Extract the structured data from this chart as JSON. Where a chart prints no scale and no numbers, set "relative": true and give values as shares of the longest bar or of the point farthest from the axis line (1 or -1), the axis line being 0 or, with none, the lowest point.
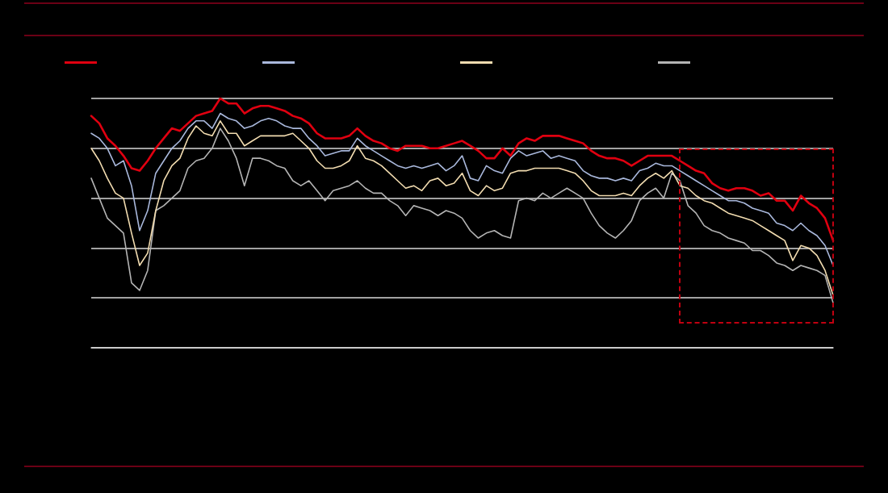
{
  "chart_data": {
    "type": "line",
    "relative": true,
    "grid": "y",
    "marker": "none",
    "line_style": "solid",
    "categories": [
      null,
      null,
      null,
      null,
      null,
      null,
      null,
      null,
      null,
      null,
      null,
      null,
      null,
      null,
      null,
      null,
      null,
      null,
      null,
      null,
      null,
      null,
      null,
      null,
      null,
      null,
      null,
      null,
      null,
      null,
      null,
      null,
      null,
      null,
      null,
      null,
      null,
      null,
      null,
      null,
      null,
      null,
      null,
      null,
      null,
      null,
      null,
      null,
      null,
      null,
      null,
      null,
      null,
      null,
      null,
      null,
      null,
      null,
      null,
      null,
      null,
      null,
      null,
      null,
      null,
      null,
      null,
      null,
      null,
      null,
      null,
      null,
      null,
      null,
      null,
      null,
      null,
      null,
      null,
      null,
      null,
      null,
      null,
      null,
      null,
      null,
      null,
      null,
      null,
      null,
      null,
      null,
      null
    ],
    "series": [
      {
        "color": "#e00010",
        "values": [
          0.93,
          0.9,
          0.84,
          0.81,
          0.77,
          0.72,
          0.71,
          0.75,
          0.8,
          0.84,
          0.88,
          0.87,
          0.9,
          0.93,
          0.94,
          0.95,
          1.0,
          0.98,
          0.98,
          0.94,
          0.96,
          0.97,
          0.97,
          0.96,
          0.95,
          0.93,
          0.92,
          0.9,
          0.86,
          0.84,
          0.84,
          0.84,
          0.85,
          0.88,
          0.85,
          0.83,
          0.82,
          0.8,
          0.79,
          0.81,
          0.81,
          0.81,
          0.8,
          0.8,
          0.81,
          0.82,
          0.83,
          0.81,
          0.79,
          0.76,
          0.76,
          0.8,
          0.77,
          0.82,
          0.84,
          0.83,
          0.85,
          0.85,
          0.85,
          0.84,
          0.83,
          0.82,
          0.79,
          0.77,
          0.76,
          0.76,
          0.75,
          0.73,
          0.75,
          0.77,
          0.77,
          0.77,
          0.77,
          0.75,
          0.73,
          0.71,
          0.7,
          0.66,
          0.64,
          0.63,
          0.64,
          0.64,
          0.63,
          0.61,
          0.62,
          0.59,
          0.59,
          0.55,
          0.61,
          0.58,
          0.56,
          0.52,
          0.43
        ]
      },
      {
        "color": "#a9b8dc",
        "values": [
          0.86,
          0.84,
          0.8,
          0.73,
          0.75,
          0.65,
          0.47,
          0.55,
          0.7,
          0.75,
          0.8,
          0.83,
          0.88,
          0.91,
          0.91,
          0.88,
          0.94,
          0.92,
          0.91,
          0.88,
          0.89,
          0.91,
          0.92,
          0.91,
          0.89,
          0.88,
          0.88,
          0.84,
          0.81,
          0.77,
          0.78,
          0.79,
          0.79,
          0.84,
          0.81,
          0.79,
          0.77,
          0.75,
          0.73,
          0.72,
          0.73,
          0.72,
          0.73,
          0.74,
          0.71,
          0.73,
          0.77,
          0.68,
          0.67,
          0.73,
          0.71,
          0.7,
          0.76,
          0.79,
          0.77,
          0.78,
          0.79,
          0.76,
          0.77,
          0.76,
          0.75,
          0.71,
          0.69,
          0.68,
          0.68,
          0.67,
          0.68,
          0.67,
          0.71,
          0.72,
          0.74,
          0.73,
          0.73,
          0.71,
          0.69,
          0.67,
          0.65,
          0.63,
          0.61,
          0.59,
          0.59,
          0.58,
          0.56,
          0.55,
          0.54,
          0.5,
          0.49,
          0.47,
          0.5,
          0.47,
          0.45,
          0.41,
          0.33
        ]
      },
      {
        "color": "#f2dcb0",
        "values": [
          0.8,
          0.75,
          0.68,
          0.62,
          0.6,
          0.46,
          0.33,
          0.38,
          0.55,
          0.67,
          0.73,
          0.76,
          0.84,
          0.89,
          0.86,
          0.85,
          0.91,
          0.86,
          0.86,
          0.81,
          0.83,
          0.85,
          0.85,
          0.85,
          0.85,
          0.86,
          0.83,
          0.8,
          0.75,
          0.72,
          0.72,
          0.73,
          0.75,
          0.81,
          0.76,
          0.75,
          0.73,
          0.7,
          0.67,
          0.64,
          0.65,
          0.63,
          0.67,
          0.68,
          0.65,
          0.66,
          0.7,
          0.63,
          0.61,
          0.65,
          0.63,
          0.64,
          0.7,
          0.71,
          0.71,
          0.72,
          0.72,
          0.72,
          0.72,
          0.71,
          0.7,
          0.67,
          0.63,
          0.61,
          0.61,
          0.61,
          0.62,
          0.61,
          0.65,
          0.68,
          0.7,
          0.68,
          0.71,
          0.65,
          0.64,
          0.61,
          0.59,
          0.58,
          0.56,
          0.54,
          0.53,
          0.52,
          0.51,
          0.49,
          0.47,
          0.45,
          0.43,
          0.35,
          0.41,
          0.4,
          0.37,
          0.31,
          0.21
        ]
      },
      {
        "color": "#b4b4b4",
        "values": [
          0.68,
          0.6,
          0.52,
          0.49,
          0.46,
          0.26,
          0.23,
          0.31,
          0.55,
          0.57,
          0.6,
          0.63,
          0.72,
          0.75,
          0.76,
          0.8,
          0.88,
          0.83,
          0.76,
          0.65,
          0.76,
          0.76,
          0.75,
          0.73,
          0.72,
          0.67,
          0.65,
          0.67,
          0.63,
          0.59,
          0.63,
          0.64,
          0.65,
          0.67,
          0.64,
          0.62,
          0.62,
          0.59,
          0.57,
          0.53,
          0.57,
          0.56,
          0.55,
          0.53,
          0.55,
          0.54,
          0.52,
          0.47,
          0.44,
          0.46,
          0.47,
          0.45,
          0.44,
          0.59,
          0.6,
          0.59,
          0.62,
          0.6,
          0.62,
          0.64,
          0.62,
          0.6,
          0.54,
          0.49,
          0.46,
          0.44,
          0.47,
          0.51,
          0.59,
          0.62,
          0.64,
          0.6,
          0.7,
          0.67,
          0.57,
          0.54,
          0.49,
          0.47,
          0.46,
          0.44,
          0.43,
          0.42,
          0.39,
          0.39,
          0.37,
          0.34,
          0.33,
          0.31,
          0.33,
          0.32,
          0.31,
          0.29,
          0.18
        ]
      }
    ]
  }
}
